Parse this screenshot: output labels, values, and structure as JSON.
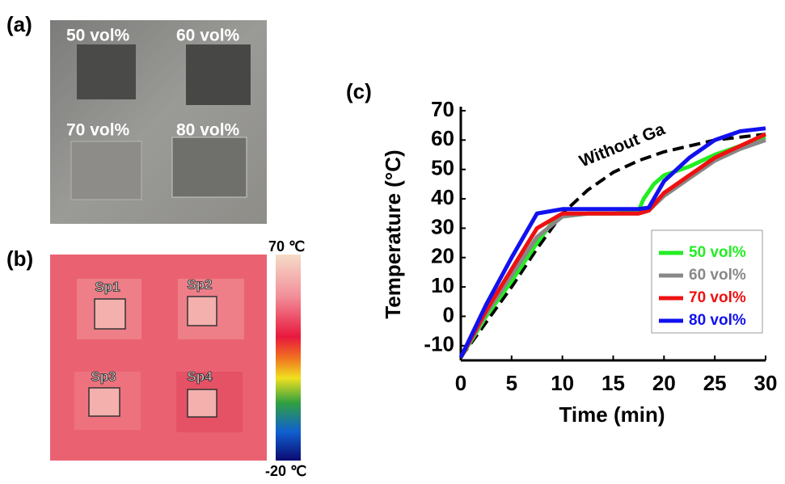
{
  "panels": {
    "a": {
      "label": "(a)",
      "samples": [
        "50 vol%",
        "60 vol%",
        "70 vol%",
        "80 vol%"
      ]
    },
    "b": {
      "label": "(b)",
      "spots": [
        "Sp1",
        "Sp2",
        "Sp3",
        "Sp4"
      ],
      "scale_max": "70 ℃",
      "scale_min": "-20 ℃"
    }
  },
  "chart_data": {
    "type": "line",
    "panel_label": "(c)",
    "x_label": "Time (min)",
    "y_label": "Temperature (°C)",
    "xlim": [
      0,
      30
    ],
    "ylim": [
      -15,
      70
    ],
    "xticks": [
      0,
      5,
      10,
      15,
      20,
      25,
      30
    ],
    "yticks": [
      -10,
      0,
      10,
      20,
      30,
      40,
      50,
      60,
      70
    ],
    "legend": "lower right",
    "series": [
      {
        "name": "50 vol%",
        "color": "#22ee22",
        "x": [
          0,
          2.5,
          5,
          7.5,
          9,
          10,
          12.5,
          15,
          17.5,
          18,
          19,
          20,
          22.5,
          25,
          27.5,
          30
        ],
        "values": [
          -14,
          0,
          12,
          25,
          32,
          34,
          35,
          35,
          36,
          40,
          45,
          48,
          51,
          55,
          58,
          61
        ]
      },
      {
        "name": "60 vol%",
        "color": "#888888",
        "x": [
          0,
          2.5,
          5,
          7.5,
          10,
          12.5,
          15,
          17.5,
          18.5,
          20,
          22.5,
          25,
          27.5,
          30
        ],
        "values": [
          -14,
          1,
          14,
          27,
          34,
          35,
          35,
          35,
          36,
          41,
          47,
          53,
          57,
          60
        ]
      },
      {
        "name": "70 vol%",
        "color": "#ee1111",
        "x": [
          0,
          2.5,
          5,
          7.5,
          10,
          12.5,
          15,
          17.5,
          18.5,
          20,
          22.5,
          25,
          27.5,
          30
        ],
        "values": [
          -14,
          2,
          16,
          30,
          35,
          35,
          35,
          35,
          36,
          42,
          48,
          54,
          58,
          62
        ]
      },
      {
        "name": "80 vol%",
        "color": "#1111ee",
        "x": [
          0,
          2.5,
          5,
          7.5,
          10,
          12.5,
          15,
          17.5,
          18.5,
          20,
          22.5,
          25,
          27.5,
          30
        ],
        "values": [
          -14,
          4,
          20,
          35,
          36.5,
          36.5,
          36.5,
          36.5,
          37,
          46,
          54,
          60,
          63,
          64
        ]
      },
      {
        "name": "Without Ga",
        "color": "#000000",
        "dashed": true,
        "in_legend": false,
        "x": [
          0,
          2.5,
          5,
          7.5,
          10,
          12.5,
          15,
          17.5,
          20,
          22.5,
          25,
          27.5,
          30
        ],
        "values": [
          -14,
          -2,
          10,
          23,
          35,
          43,
          49,
          53,
          56,
          58,
          60,
          61,
          62
        ]
      }
    ]
  }
}
